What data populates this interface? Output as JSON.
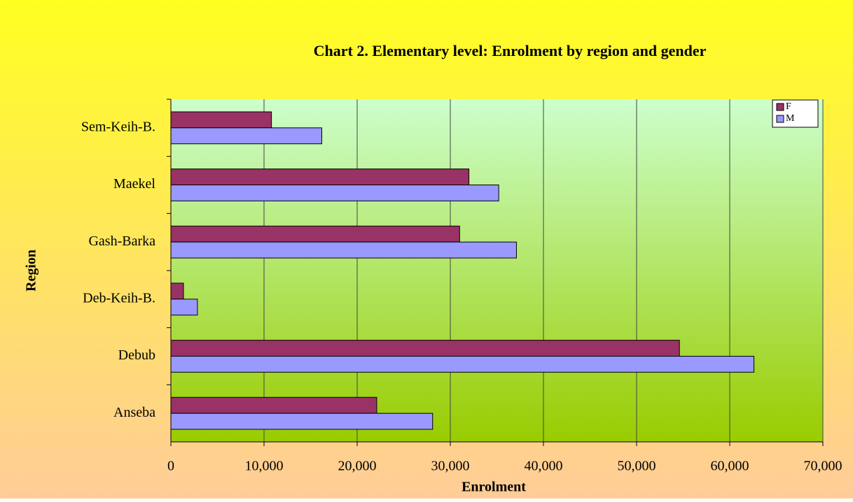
{
  "chart_data": {
    "type": "bar",
    "orientation": "horizontal",
    "title": "Chart 2. Elementary level: Enrolment by region and gender",
    "x_label": "Enrolment",
    "y_label": "Region",
    "categories": [
      "Anseba",
      "Debub",
      "Deb-Keih-B.",
      "Gash-Barka",
      "Maekel",
      "Sem-Keih-B."
    ],
    "series": [
      {
        "name": "F",
        "color": "#993366",
        "values": [
          22100,
          54600,
          1350,
          31000,
          32000,
          10800
        ]
      },
      {
        "name": "M",
        "color": "#9999ff",
        "values": [
          28100,
          62600,
          2850,
          37100,
          35200,
          16200
        ]
      }
    ],
    "xlim": [
      0,
      70000
    ],
    "xticks": [
      0,
      {
        "value": 10000,
        "label": "10,000"
      },
      {
        "value": 20000,
        "label": "20,000"
      },
      {
        "value": 30000,
        "label": "30,000"
      },
      {
        "value": 40000,
        "label": "40,000"
      },
      {
        "value": 50000,
        "label": "50,000"
      },
      {
        "value": 60000,
        "label": "60,000"
      },
      {
        "value": 70000,
        "label": "70,000"
      }
    ],
    "grid": true,
    "legend": "top-right"
  }
}
